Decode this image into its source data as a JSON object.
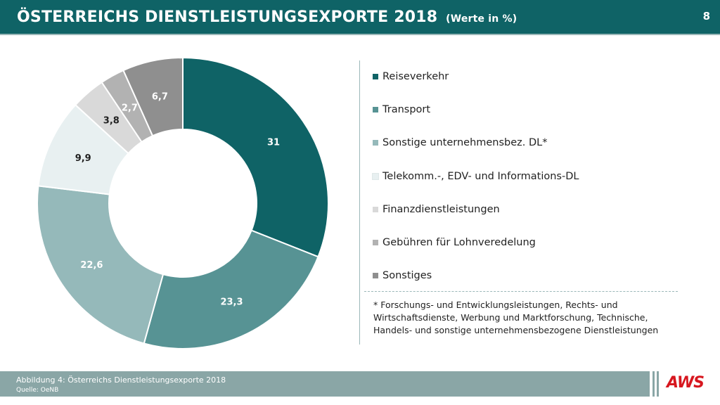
{
  "header": {
    "title": "ÖSTERREICHS DIENSTLEISTUNGSEXPORTE 2018",
    "title_unit": "(Werte in %)",
    "page_number": "8"
  },
  "chart_data": {
    "type": "pie",
    "style": "donut",
    "title": "ÖSTERREICHS DIENSTLEISTUNGSEXPORTE 2018",
    "subtitle": "(Werte in %)",
    "categories": [
      "Reiseverkehr",
      "Transport",
      "Sonstige unternehmensbez. DL*",
      "Telekomm.-, EDV- und Informations-DL",
      "Finanzdienstleistungen",
      "Gebühren für Lohnveredelung",
      "Sonstiges"
    ],
    "values": [
      31,
      23.3,
      22.6,
      9.9,
      3.8,
      2.7,
      6.7
    ],
    "value_labels": [
      "31",
      "23,3",
      "22,6",
      "9,9",
      "3,8",
      "2,7",
      "6,7"
    ],
    "colors": [
      "#0f6366",
      "#579394",
      "#95b9ba",
      "#e8f0f1",
      "#d9d9d9",
      "#b2b2b2",
      "#8f8f8f"
    ],
    "label_colors": [
      "#ffffff",
      "#ffffff",
      "#ffffff",
      "#222222",
      "#222222",
      "#ffffff",
      "#ffffff"
    ],
    "legend_position": "right",
    "start_angle": "12 o'clock, clockwise"
  },
  "footnote": "* Forschungs- und Entwicklungsleistungen, Rechts- und Wirtschaftsdienste, Werbung und Marktforschung, Technische, Handels- und sonstige unternehmensbezogene Dienstleistungen",
  "footer": {
    "caption": "Abbildung 4: Österreichs Dienstleistungsexporte 2018",
    "source": "Quelle: OeNB",
    "logo_text": "AWS",
    "logo_color": "#d7171f"
  }
}
